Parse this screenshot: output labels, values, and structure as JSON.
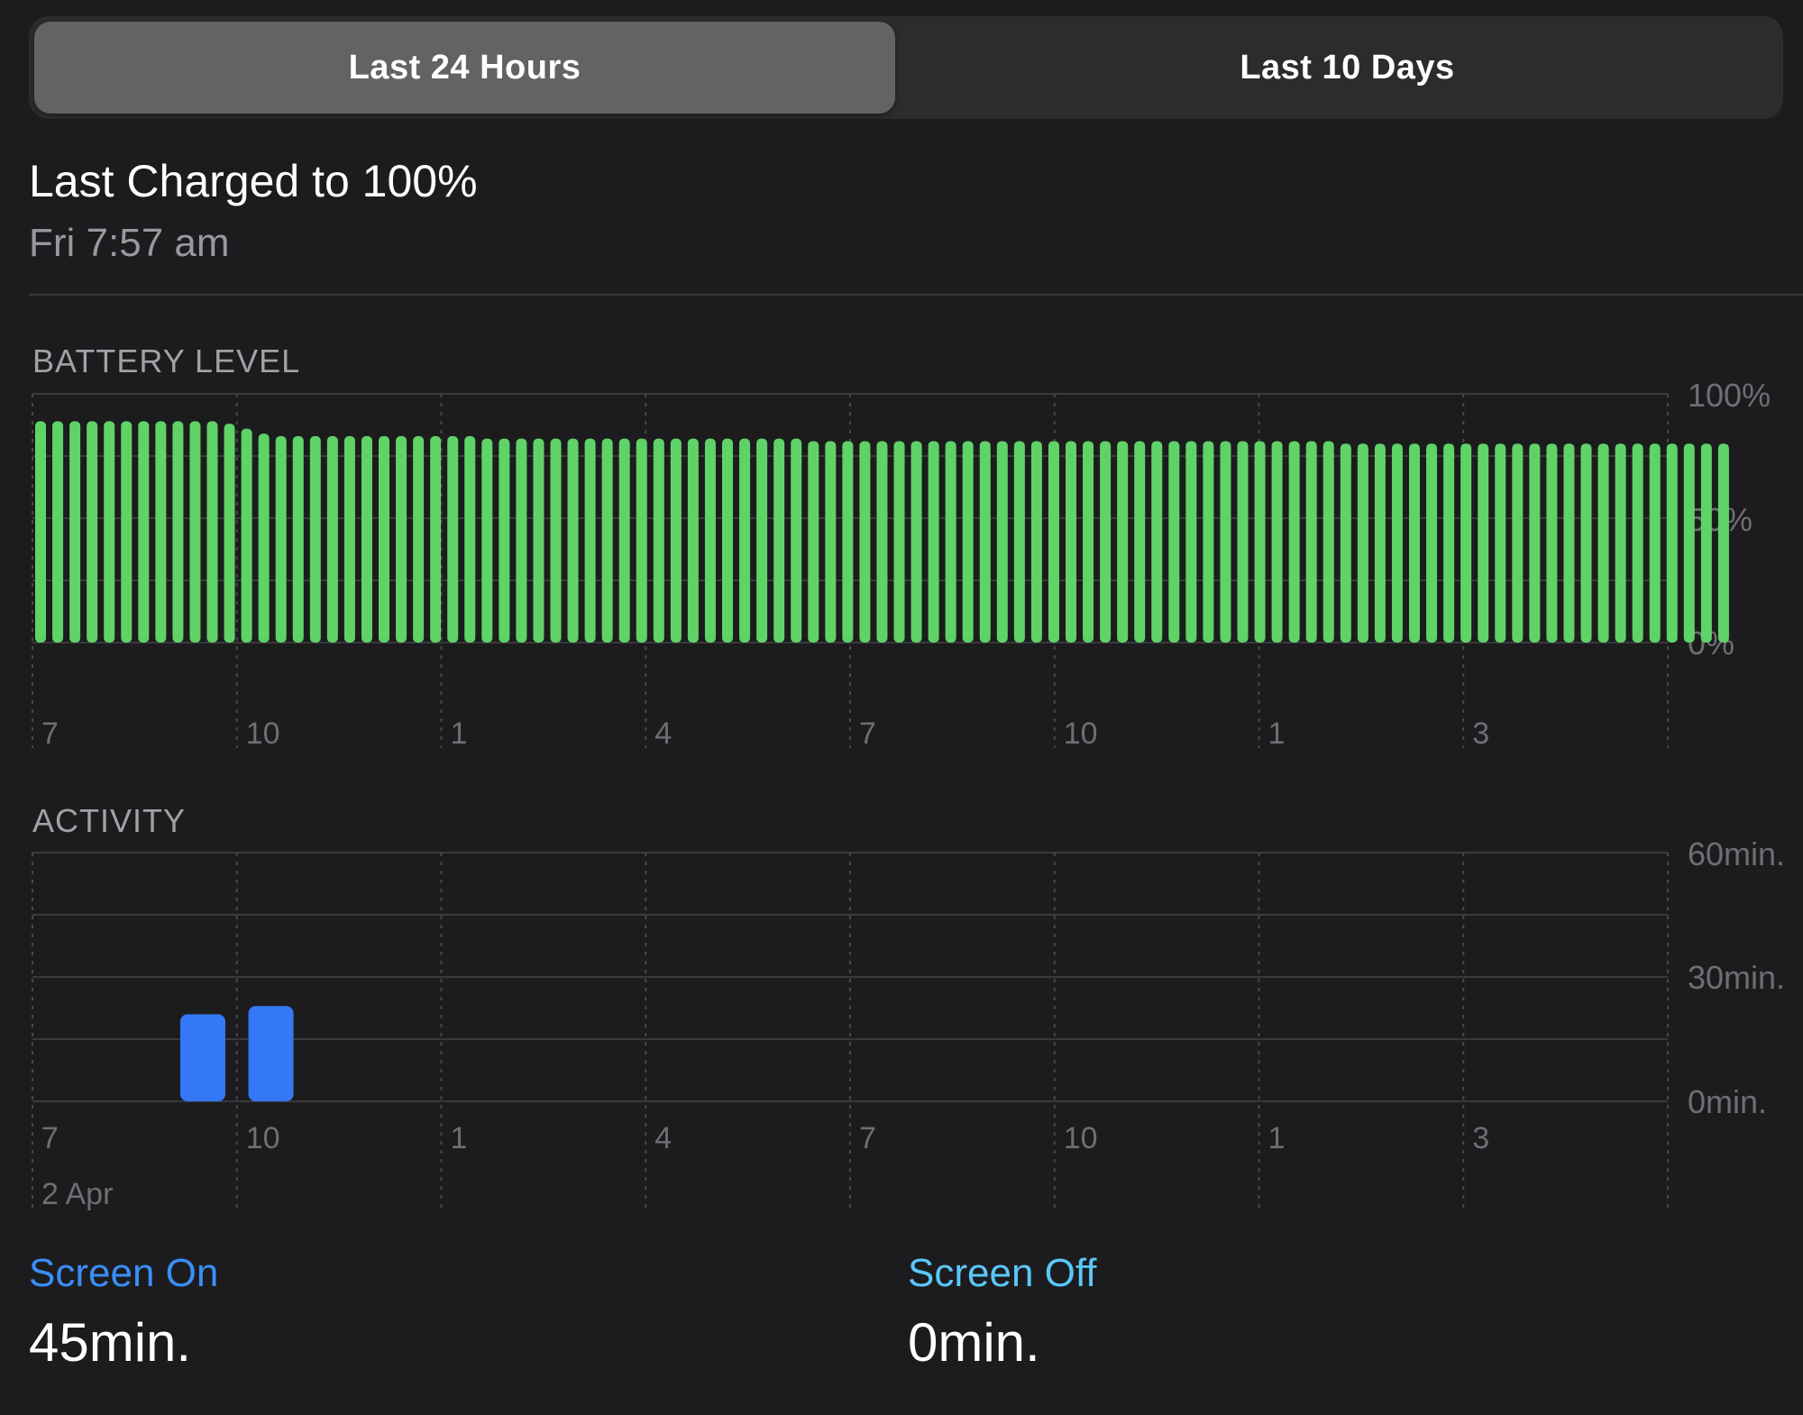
{
  "tabs": [
    {
      "label": "Last 24 Hours",
      "selected": true
    },
    {
      "label": "Last 10 Days",
      "selected": false
    }
  ],
  "last_charged": {
    "title": "Last Charged to 100%",
    "time": "Fri 7:57 am"
  },
  "battery": {
    "section_label": "BATTERY LEVEL",
    "y_ticks": [
      "100%",
      "50%",
      "0%"
    ],
    "x_ticks": [
      "7",
      "10",
      "1",
      "4",
      "7",
      "10",
      "1",
      "3"
    ],
    "color": "#5fd368"
  },
  "activity": {
    "section_label": "ACTIVITY",
    "y_ticks": [
      "60min.",
      "30min.",
      "0min."
    ],
    "x_ticks": [
      "7",
      "10",
      "1",
      "4",
      "7",
      "10",
      "1",
      "3"
    ],
    "date_label": "2 Apr",
    "color": "#3478f6"
  },
  "chart_data": [
    {
      "type": "bar",
      "ylabel": "",
      "ylim": [
        0,
        100
      ],
      "x_tick_labels": [
        "7",
        "10",
        "1",
        "4",
        "7",
        "10",
        "1",
        "3"
      ],
      "unit": "%",
      "values": [
        89,
        89,
        89,
        89,
        89,
        89,
        89,
        89,
        89,
        89,
        89,
        88,
        86,
        84,
        83,
        83,
        83,
        83,
        83,
        83,
        83,
        83,
        83,
        83,
        83,
        83,
        82,
        82,
        82,
        82,
        82,
        82,
        82,
        82,
        82,
        82,
        82,
        82,
        82,
        82,
        82,
        82,
        82,
        82,
        82,
        81,
        81,
        81,
        81,
        81,
        81,
        81,
        81,
        81,
        81,
        81,
        81,
        81,
        81,
        81,
        81,
        81,
        81,
        81,
        81,
        81,
        81,
        81,
        81,
        81,
        81,
        81,
        81,
        81,
        81,
        81,
        80,
        80,
        80,
        80,
        80,
        80,
        80,
        80,
        80,
        80,
        80,
        80,
        80,
        80,
        80,
        80,
        80,
        80,
        80,
        80,
        80,
        80,
        80
      ]
    },
    {
      "type": "bar",
      "ylabel": "",
      "ylim": [
        0,
        60
      ],
      "x_tick_labels": [
        "7",
        "10",
        "1",
        "4",
        "7",
        "10",
        "1",
        "3"
      ],
      "unit": "min.",
      "hours_from_start": [
        2.5,
        3.5
      ],
      "values": [
        21,
        23
      ]
    }
  ],
  "screen_on": {
    "label": "Screen On",
    "value": "45min.",
    "color": "#3a8ef6"
  },
  "screen_off": {
    "label": "Screen Off",
    "value": "0min.",
    "color": "#5ac8fa"
  }
}
